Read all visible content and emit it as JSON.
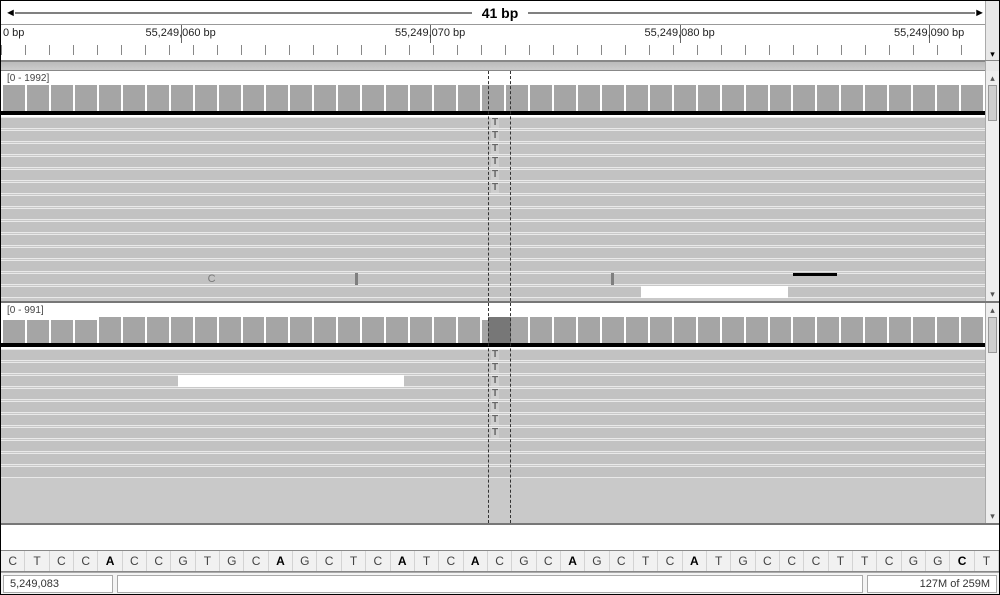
{
  "ruler": {
    "span_label": "41 bp",
    "start_label": "0 bp",
    "ticks": [
      {
        "pos_pct": 18,
        "label": "55,249,060 bp"
      },
      {
        "pos_pct": 43,
        "label": "55,249,070 bp"
      },
      {
        "pos_pct": 68,
        "label": "55,249,080 bp"
      },
      {
        "pos_pct": 93,
        "label": "55,249,090 bp"
      }
    ],
    "minor_count": 41
  },
  "track1": {
    "scale": "[0 - 1992]",
    "coverage_bars": 41,
    "variant_col_pct": 49.5,
    "variant_width_pct": 2.3,
    "variant_label": "T",
    "variant_count_top": 6,
    "read_rows": 14,
    "extras": {
      "c_label": "C",
      "insert_positions_pct": [
        36.0,
        62.0
      ],
      "gap_start_pct": 65,
      "gap_end_pct": 80,
      "dark_start_pct": 80.5,
      "dark_end_pct": 85
    }
  },
  "track2": {
    "scale": "[0 - 991]",
    "coverage_bars": 41,
    "variant_col_pct": 49.5,
    "variant_width_pct": 2.3,
    "variant_label": "T",
    "variant_count_top": 7,
    "read_rows": 10,
    "gap1": {
      "start_pct": 18,
      "end_pct": 41
    },
    "gap2": {
      "start_pct": 37.5,
      "end_pct": 49.5,
      "is_black": true
    }
  },
  "sequence": [
    "C",
    "T",
    "C",
    "C",
    "A",
    "C",
    "C",
    "G",
    "T",
    "G",
    "C",
    "A",
    "G",
    "C",
    "T",
    "C",
    "A",
    "T",
    "C",
    "A",
    "C",
    "G",
    "C",
    "A",
    "G",
    "C",
    "T",
    "C",
    "A",
    "T",
    "G",
    "C",
    "C",
    "C",
    "T",
    "T",
    "C",
    "G",
    "G",
    "C",
    "T"
  ],
  "sequence_bold_idx": [
    4,
    11,
    16,
    19,
    23,
    28,
    39
  ],
  "status": {
    "locus": "5,249,083",
    "blank": "",
    "mem": "127M of 259M"
  },
  "colors": {
    "bar": "#a5a5a5",
    "read": "#c2c2c2",
    "variant": "#777"
  }
}
